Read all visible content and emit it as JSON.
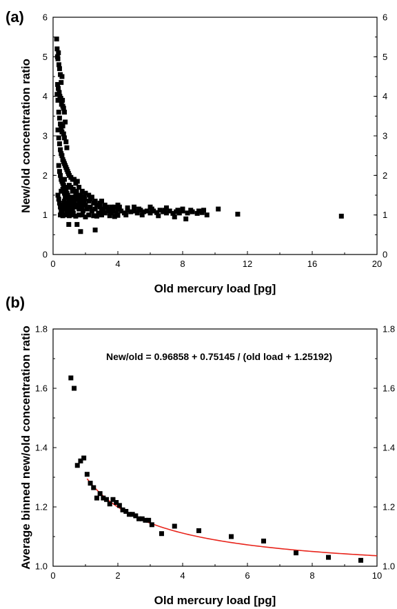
{
  "chart_data": [
    {
      "type": "scatter",
      "panel_label": "(a)",
      "xlabel": "Old mercury load [pg]",
      "ylabel": "New/old concentration ratio",
      "xlim": [
        0,
        20
      ],
      "ylim": [
        0,
        6
      ],
      "x_ticks": [
        "0",
        "4",
        "8",
        "12",
        "16",
        "20"
      ],
      "y_ticks": [
        "0",
        "1",
        "2",
        "3",
        "4",
        "5",
        "6"
      ],
      "y_ticks_right": [
        "0",
        "1",
        "2",
        "3",
        "4",
        "5",
        "6"
      ],
      "marker_color": "#000000",
      "points": [
        [
          0.22,
          5.45
        ],
        [
          0.25,
          5.2
        ],
        [
          0.27,
          5.0
        ],
        [
          0.3,
          4.95
        ],
        [
          0.33,
          5.1
        ],
        [
          0.36,
          4.8
        ],
        [
          0.4,
          4.7
        ],
        [
          0.45,
          4.55
        ],
        [
          0.5,
          4.35
        ],
        [
          0.55,
          4.5
        ],
        [
          0.28,
          4.3
        ],
        [
          0.32,
          4.2
        ],
        [
          0.38,
          4.1
        ],
        [
          0.42,
          4.0
        ],
        [
          0.48,
          3.95
        ],
        [
          0.52,
          3.8
        ],
        [
          0.58,
          3.9
        ],
        [
          0.6,
          3.75
        ],
        [
          0.65,
          3.7
        ],
        [
          0.7,
          3.6
        ],
        [
          0.25,
          4.05
        ],
        [
          0.3,
          3.9
        ],
        [
          0.35,
          3.6
        ],
        [
          0.4,
          3.45
        ],
        [
          0.45,
          3.3
        ],
        [
          0.5,
          3.2
        ],
        [
          0.55,
          3.1
        ],
        [
          0.6,
          3.25
        ],
        [
          0.65,
          3.05
        ],
        [
          0.7,
          2.95
        ],
        [
          0.75,
          3.35
        ],
        [
          0.8,
          2.85
        ],
        [
          0.85,
          2.7
        ],
        [
          0.3,
          3.15
        ],
        [
          0.35,
          2.95
        ],
        [
          0.4,
          2.8
        ],
        [
          0.45,
          2.65
        ],
        [
          0.5,
          2.55
        ],
        [
          0.55,
          2.5
        ],
        [
          0.6,
          2.4
        ],
        [
          0.65,
          2.35
        ],
        [
          0.7,
          2.3
        ],
        [
          0.75,
          2.25
        ],
        [
          0.8,
          2.2
        ],
        [
          0.85,
          2.15
        ],
        [
          0.9,
          2.1
        ],
        [
          0.95,
          2.05
        ],
        [
          1.0,
          2.0
        ],
        [
          1.1,
          1.95
        ],
        [
          1.2,
          1.9
        ],
        [
          0.35,
          2.25
        ],
        [
          0.4,
          2.1
        ],
        [
          0.45,
          2.0
        ],
        [
          0.5,
          1.9
        ],
        [
          0.55,
          1.85
        ],
        [
          0.6,
          1.8
        ],
        [
          0.65,
          1.75
        ],
        [
          0.7,
          1.7
        ],
        [
          0.75,
          1.65
        ],
        [
          0.8,
          1.6
        ],
        [
          0.85,
          1.55
        ],
        [
          0.9,
          1.5
        ],
        [
          0.95,
          1.45
        ],
        [
          1.0,
          1.4
        ],
        [
          1.1,
          1.35
        ],
        [
          1.2,
          1.3
        ],
        [
          1.3,
          1.25
        ],
        [
          1.4,
          1.2
        ],
        [
          1.5,
          1.25
        ],
        [
          1.6,
          1.3
        ],
        [
          0.3,
          1.5
        ],
        [
          0.35,
          1.4
        ],
        [
          0.4,
          1.3
        ],
        [
          0.45,
          1.2
        ],
        [
          0.5,
          1.1
        ],
        [
          0.55,
          1.05
        ],
        [
          0.6,
          1.15
        ],
        [
          0.65,
          1.25
        ],
        [
          0.7,
          1.35
        ],
        [
          0.75,
          1.45
        ],
        [
          0.8,
          1.2
        ],
        [
          0.85,
          1.1
        ],
        [
          0.9,
          1.05
        ],
        [
          0.95,
          1.15
        ],
        [
          1.0,
          1.25
        ],
        [
          1.05,
          1.1
        ],
        [
          1.1,
          1.2
        ],
        [
          1.15,
          1.3
        ],
        [
          1.2,
          1.15
        ],
        [
          1.25,
          1.05
        ],
        [
          1.3,
          1.35
        ],
        [
          1.35,
          1.45
        ],
        [
          1.4,
          1.55
        ],
        [
          1.45,
          1.6
        ],
        [
          1.5,
          1.4
        ],
        [
          1.55,
          1.5
        ],
        [
          1.6,
          1.15
        ],
        [
          1.65,
          1.25
        ],
        [
          1.7,
          1.35
        ],
        [
          1.75,
          1.45
        ],
        [
          1.8,
          1.2
        ],
        [
          1.85,
          1.1
        ],
        [
          1.9,
          1.3
        ],
        [
          1.95,
          1.4
        ],
        [
          2.0,
          1.25
        ],
        [
          2.1,
          1.15
        ],
        [
          2.2,
          1.35
        ],
        [
          2.3,
          1.2
        ],
        [
          2.4,
          1.1
        ],
        [
          2.5,
          1.3
        ],
        [
          2.6,
          1.15
        ],
        [
          2.7,
          1.25
        ],
        [
          2.8,
          1.05
        ],
        [
          2.9,
          1.2
        ],
        [
          3.0,
          1.1
        ],
        [
          3.1,
          1.15
        ],
        [
          3.2,
          1.05
        ],
        [
          3.3,
          1.2
        ],
        [
          3.4,
          1.1
        ],
        [
          3.5,
          1.15
        ],
        [
          3.6,
          1.05
        ],
        [
          3.7,
          1.1
        ],
        [
          3.8,
          1.2
        ],
        [
          3.9,
          1.05
        ],
        [
          4.0,
          1.15
        ],
        [
          4.2,
          1.1
        ],
        [
          4.4,
          1.05
        ],
        [
          4.6,
          1.12
        ],
        [
          4.8,
          1.08
        ],
        [
          5.0,
          1.1
        ],
        [
          5.2,
          1.05
        ],
        [
          5.4,
          1.12
        ],
        [
          5.6,
          1.08
        ],
        [
          5.8,
          1.1
        ],
        [
          6.0,
          1.05
        ],
        [
          6.2,
          1.1
        ],
        [
          6.4,
          1.06
        ],
        [
          6.6,
          1.12
        ],
        [
          6.8,
          1.08
        ],
        [
          7.0,
          1.05
        ],
        [
          7.2,
          1.1
        ],
        [
          7.4,
          1.04
        ],
        [
          7.6,
          1.08
        ],
        [
          7.8,
          1.05
        ],
        [
          8.0,
          1.1
        ],
        [
          8.3,
          1.05
        ],
        [
          8.6,
          1.08
        ],
        [
          8.9,
          1.04
        ],
        [
          9.2,
          1.06
        ],
        [
          9.5,
          1.0
        ],
        [
          4.5,
          1.0
        ],
        [
          5.5,
          1.0
        ],
        [
          6.5,
          0.98
        ],
        [
          7.5,
          0.95
        ],
        [
          2.2,
          1.0
        ],
        [
          2.5,
          0.98
        ],
        [
          3.0,
          1.0
        ],
        [
          3.5,
          0.98
        ],
        [
          4.0,
          0.99
        ],
        [
          1.8,
          1.0
        ],
        [
          0.45,
          1.0
        ],
        [
          0.6,
          0.98
        ],
        [
          0.8,
          1.0
        ],
        [
          1.0,
          0.98
        ],
        [
          1.2,
          1.0
        ],
        [
          1.4,
          0.97
        ],
        [
          1.6,
          1.0
        ],
        [
          2.0,
          0.95
        ],
        [
          2.7,
          0.97
        ],
        [
          3.8,
          0.96
        ],
        [
          1.1,
          1.7
        ],
        [
          1.25,
          1.65
        ],
        [
          1.4,
          1.8
        ],
        [
          1.6,
          1.7
        ],
        [
          1.8,
          1.6
        ],
        [
          2.0,
          1.55
        ],
        [
          2.2,
          1.5
        ],
        [
          2.4,
          1.45
        ],
        [
          1.3,
          1.9
        ],
        [
          1.5,
          1.85
        ],
        [
          0.5,
          1.6
        ],
        [
          0.6,
          1.65
        ],
        [
          0.7,
          1.55
        ],
        [
          0.9,
          1.7
        ],
        [
          1.0,
          1.75
        ],
        [
          1.2,
          1.6
        ],
        [
          1.4,
          1.4
        ],
        [
          1.7,
          1.5
        ],
        [
          1.9,
          1.45
        ],
        [
          2.3,
          1.4
        ],
        [
          2.6,
          1.35
        ],
        [
          2.9,
          1.3
        ],
        [
          3.2,
          1.25
        ],
        [
          3.6,
          1.2
        ],
        [
          4.1,
          1.2
        ],
        [
          4.6,
          1.18
        ],
        [
          5.3,
          1.15
        ],
        [
          6.1,
          1.15
        ],
        [
          6.9,
          1.12
        ],
        [
          7.7,
          1.12
        ],
        [
          8.5,
          1.12
        ],
        [
          9.0,
          1.1
        ],
        [
          3.0,
          1.35
        ],
        [
          4.0,
          1.25
        ],
        [
          5.0,
          1.2
        ],
        [
          6.0,
          1.2
        ],
        [
          7.0,
          1.18
        ],
        [
          8.0,
          1.15
        ],
        [
          9.3,
          1.12
        ],
        [
          8.2,
          0.9
        ],
        [
          10.2,
          1.15
        ],
        [
          11.4,
          1.02
        ],
        [
          17.8,
          0.97
        ],
        [
          0.97,
          0.76
        ],
        [
          1.48,
          0.76
        ],
        [
          1.7,
          0.58
        ],
        [
          2.6,
          0.62
        ],
        [
          0.9,
          1.3
        ],
        [
          1.1,
          1.45
        ],
        [
          0.7,
          1.9
        ]
      ]
    },
    {
      "type": "scatter",
      "panel_label": "(b)",
      "xlabel": "Old mercury load [pg]",
      "ylabel": "Average binned new/old concentration ratio",
      "xlim": [
        0,
        10
      ],
      "ylim": [
        1.0,
        1.8
      ],
      "x_ticks": [
        "0",
        "2",
        "4",
        "6",
        "8",
        "10"
      ],
      "y_ticks": [
        "1.0",
        "1.2",
        "1.4",
        "1.6",
        "1.8"
      ],
      "y_ticks_right": [
        "1.0",
        "1.2",
        "1.4",
        "1.6",
        "1.8"
      ],
      "annotation": "New/old = 0.96858 + 0.75145 / (old load + 1.25192)",
      "marker_color": "#000000",
      "fit_color": "#e8231a",
      "fit": {
        "a": 0.96858,
        "b": 0.75145,
        "c": 1.25192,
        "x_start": 1.05,
        "x_end": 10
      },
      "points": [
        [
          0.55,
          1.635
        ],
        [
          0.65,
          1.6
        ],
        [
          0.75,
          1.34
        ],
        [
          0.85,
          1.355
        ],
        [
          0.95,
          1.365
        ],
        [
          1.05,
          1.31
        ],
        [
          1.15,
          1.28
        ],
        [
          1.25,
          1.265
        ],
        [
          1.35,
          1.23
        ],
        [
          1.45,
          1.245
        ],
        [
          1.55,
          1.23
        ],
        [
          1.65,
          1.225
        ],
        [
          1.75,
          1.21
        ],
        [
          1.85,
          1.225
        ],
        [
          1.95,
          1.215
        ],
        [
          2.05,
          1.205
        ],
        [
          2.15,
          1.19
        ],
        [
          2.25,
          1.185
        ],
        [
          2.35,
          1.175
        ],
        [
          2.45,
          1.175
        ],
        [
          2.55,
          1.17
        ],
        [
          2.65,
          1.16
        ],
        [
          2.75,
          1.16
        ],
        [
          2.85,
          1.155
        ],
        [
          2.95,
          1.155
        ],
        [
          3.05,
          1.14
        ],
        [
          3.35,
          1.11
        ],
        [
          3.75,
          1.135
        ],
        [
          4.5,
          1.12
        ],
        [
          5.5,
          1.1
        ],
        [
          6.5,
          1.085
        ],
        [
          7.5,
          1.045
        ],
        [
          8.5,
          1.03
        ],
        [
          9.5,
          1.02
        ]
      ]
    }
  ]
}
